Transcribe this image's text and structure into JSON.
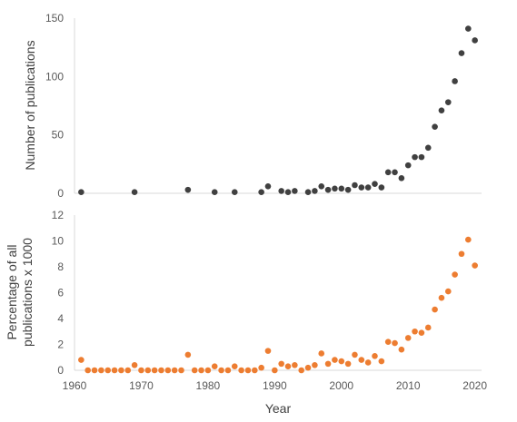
{
  "chart_data": [
    {
      "type": "scatter",
      "ylabel": "Number of publications",
      "ylim": [
        0,
        150
      ],
      "yticks": [
        0,
        50,
        100,
        150
      ],
      "xlim": [
        1960,
        2021
      ],
      "grid": false,
      "color": "#404040",
      "series": [
        {
          "x": [
            1961,
            1969,
            1977,
            1981,
            1984,
            1988,
            1989,
            1991,
            1992,
            1993,
            1995,
            1996,
            1997,
            1998,
            1999,
            2000,
            2001,
            2002,
            2003,
            2004,
            2005,
            2006,
            2007,
            2008,
            2009,
            2010,
            2011,
            2012,
            2013,
            2014,
            2015,
            2016,
            2017,
            2018,
            2019,
            2020
          ],
          "y": [
            1,
            1,
            3,
            1,
            1,
            1,
            6,
            2,
            1,
            2,
            1,
            2,
            6,
            3,
            4,
            4,
            3,
            7,
            5,
            5,
            8,
            5,
            18,
            18,
            13,
            24,
            31,
            31,
            39,
            57,
            71,
            78,
            96,
            120,
            141,
            131
          ]
        }
      ]
    },
    {
      "type": "scatter",
      "ylabel": "Percentage of all publications x 1000",
      "ylabel_lines": [
        "Percentage of all",
        "publications x 1000"
      ],
      "xlabel": "Year",
      "ylim": [
        0,
        12
      ],
      "yticks": [
        0,
        2,
        4,
        6,
        8,
        10,
        12
      ],
      "xlim": [
        1960,
        2021
      ],
      "xticks": [
        1960,
        1970,
        1980,
        1990,
        2000,
        2010,
        2020
      ],
      "grid": false,
      "color": "#ed7d31",
      "series": [
        {
          "x": [
            1961,
            1962,
            1963,
            1964,
            1965,
            1966,
            1967,
            1968,
            1969,
            1970,
            1971,
            1972,
            1973,
            1974,
            1975,
            1976,
            1977,
            1978,
            1979,
            1980,
            1981,
            1982,
            1983,
            1984,
            1985,
            1986,
            1987,
            1988,
            1989,
            1990,
            1991,
            1992,
            1993,
            1994,
            1995,
            1996,
            1997,
            1998,
            1999,
            2000,
            2001,
            2002,
            2003,
            2004,
            2005,
            2006,
            2007,
            2008,
            2009,
            2010,
            2011,
            2012,
            2013,
            2014,
            2015,
            2016,
            2017,
            2018,
            2019,
            2020
          ],
          "y": [
            0.8,
            0,
            0,
            0,
            0,
            0,
            0,
            0,
            0.4,
            0,
            0,
            0,
            0,
            0,
            0,
            0,
            1.2,
            0,
            0,
            0,
            0.3,
            0,
            0,
            0.3,
            0,
            0,
            0,
            0.2,
            1.5,
            0,
            0.5,
            0.3,
            0.4,
            0,
            0.2,
            0.4,
            1.3,
            0.5,
            0.8,
            0.7,
            0.5,
            1.2,
            0.8,
            0.6,
            1.1,
            0.7,
            2.2,
            2.1,
            1.6,
            2.5,
            3.0,
            2.9,
            3.3,
            4.7,
            5.6,
            6.1,
            7.4,
            9.0,
            10.1,
            8.1
          ]
        }
      ]
    }
  ]
}
